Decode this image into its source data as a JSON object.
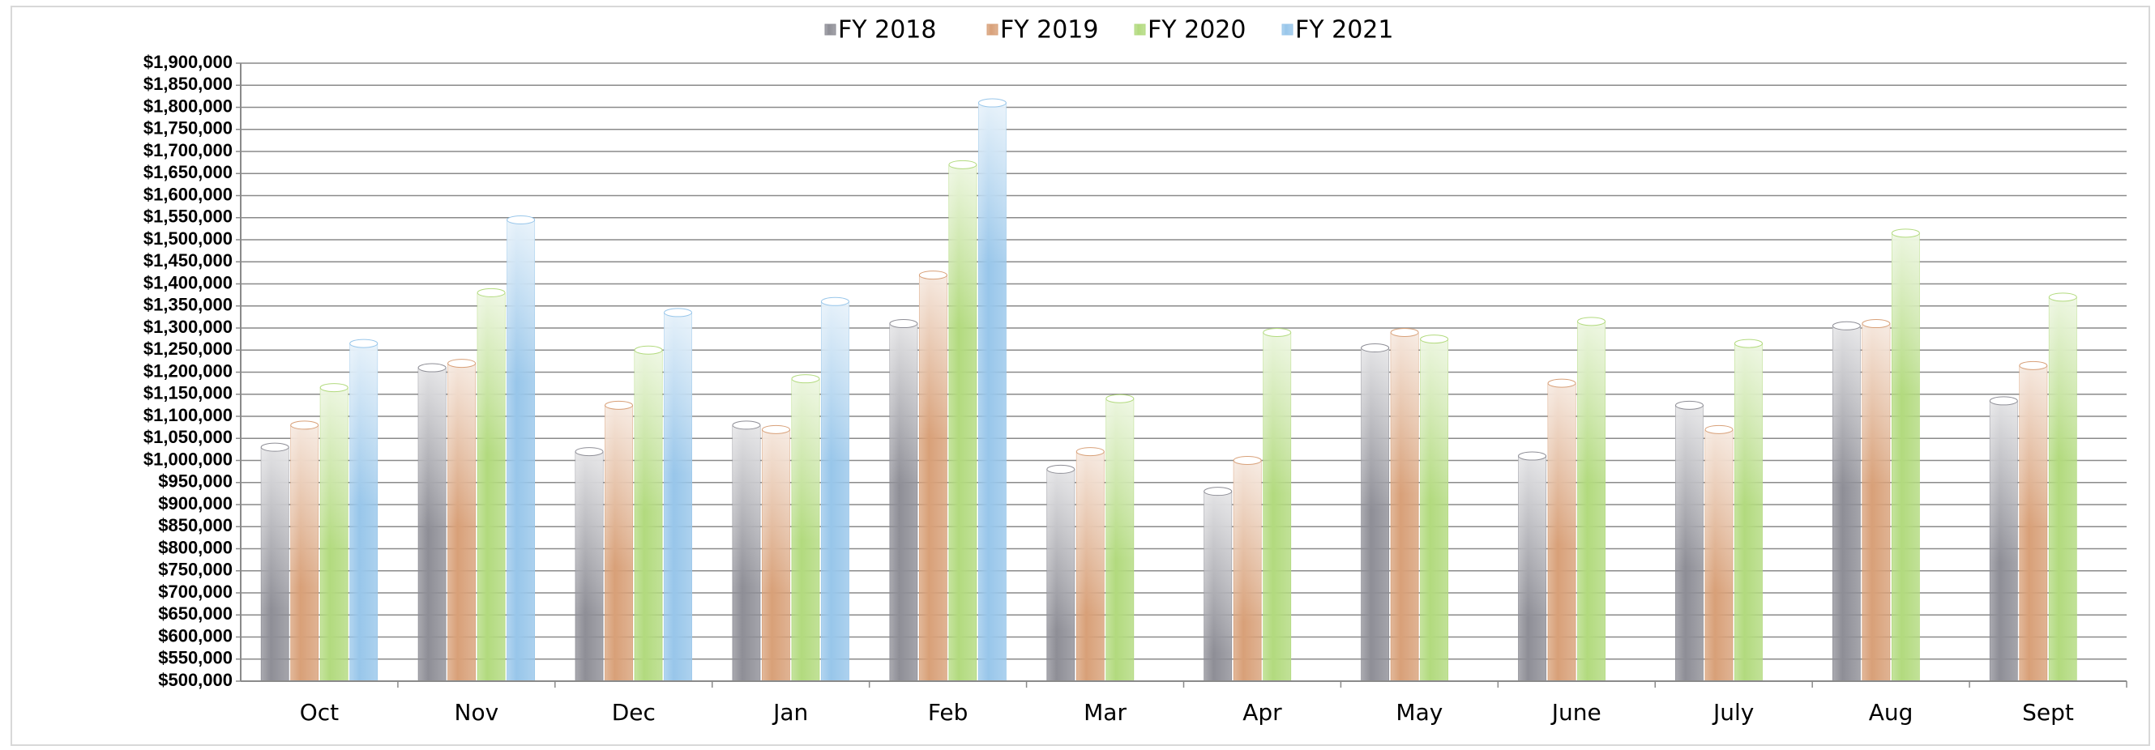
{
  "chart_data": {
    "type": "bar",
    "categories": [
      "Oct",
      "Nov",
      "Dec",
      "Jan",
      "Feb",
      "Mar",
      "Apr",
      "May",
      "June",
      "July",
      "Aug",
      "Sept"
    ],
    "series": [
      {
        "name": "FY 2018",
        "color": "#8e8e96",
        "values": [
          1030000,
          1210000,
          1020000,
          1080000,
          1310000,
          980000,
          930000,
          1255000,
          1010000,
          1125000,
          1305000,
          1135000
        ]
      },
      {
        "name": "FY 2019",
        "color": "#d8a078",
        "values": [
          1080000,
          1220000,
          1125000,
          1070000,
          1420000,
          1020000,
          1000000,
          1290000,
          1175000,
          1070000,
          1310000,
          1215000
        ]
      },
      {
        "name": "FY 2020",
        "color": "#b2da7e",
        "values": [
          1165000,
          1380000,
          1250000,
          1185000,
          1670000,
          1140000,
          1290000,
          1275000,
          1315000,
          1265000,
          1515000,
          1370000
        ]
      },
      {
        "name": "FY 2021",
        "color": "#98c6ea",
        "values": [
          1265000,
          1545000,
          1335000,
          1360000,
          1810000,
          null,
          null,
          null,
          null,
          null,
          null,
          null
        ]
      }
    ],
    "ylim": [
      500000,
      1900000
    ],
    "yticks": [
      {
        "value": 500000,
        "label": "$500,000"
      },
      {
        "value": 550000,
        "label": "$550,000"
      },
      {
        "value": 600000,
        "label": "$600,000"
      },
      {
        "value": 650000,
        "label": "$650,000"
      },
      {
        "value": 700000,
        "label": "$700,000"
      },
      {
        "value": 750000,
        "label": "$750,000"
      },
      {
        "value": 800000,
        "label": "$800,000"
      },
      {
        "value": 850000,
        "label": "$850,000"
      },
      {
        "value": 900000,
        "label": "$900,000"
      },
      {
        "value": 950000,
        "label": "$950,000"
      },
      {
        "value": 1000000,
        "label": "$1,000,000"
      },
      {
        "value": 1050000,
        "label": "$1,050,000"
      },
      {
        "value": 1100000,
        "label": "$1,100,000"
      },
      {
        "value": 1150000,
        "label": "$1,150,000"
      },
      {
        "value": 1200000,
        "label": "$1,200,000"
      },
      {
        "value": 1250000,
        "label": "$1,250,000"
      },
      {
        "value": 1300000,
        "label": "$1,300,000"
      },
      {
        "value": 1350000,
        "label": "$1,350,000"
      },
      {
        "value": 1400000,
        "label": "$1,400,000"
      },
      {
        "value": 1450000,
        "label": "$1,450,000"
      },
      {
        "value": 1500000,
        "label": "$1,500,000"
      },
      {
        "value": 1550000,
        "label": "$1,550,000"
      },
      {
        "value": 1600000,
        "label": "$1,600,000"
      },
      {
        "value": 1650000,
        "label": "$1,650,000"
      },
      {
        "value": 1700000,
        "label": "$1,700,000"
      },
      {
        "value": 1750000,
        "label": "$1,750,000"
      },
      {
        "value": 1800000,
        "label": "$1,800,000"
      },
      {
        "value": 1850000,
        "label": "$1,850,000"
      },
      {
        "value": 1900000,
        "label": "$1,900,000"
      }
    ],
    "grid": true,
    "legend": "top"
  }
}
